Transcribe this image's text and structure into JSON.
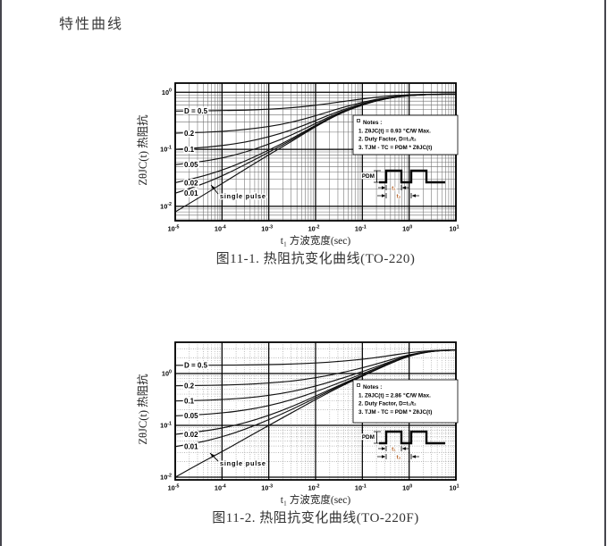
{
  "page": {
    "title": "特性曲线"
  },
  "chart_data": [
    {
      "type": "line",
      "scale": "log-log",
      "title": "图11-1. 热阻抗变化曲线(TO-220)",
      "xlabel": "t₁ 方波宽度(sec)",
      "ylabel": "ZθJC(t) 热阻抗",
      "xlim": [
        1e-05,
        10
      ],
      "ylim": [
        0.0056,
        1.45
      ],
      "x_tick_exponents": [
        -5,
        -4,
        -3,
        -2,
        -1,
        0,
        1
      ],
      "y_tick_exponents": [
        0,
        -1,
        -2
      ],
      "grid": "log decades with solid minor lines",
      "zth_max_c_per_w": 0.93,
      "x": [
        1e-05,
        3.16e-05,
        0.0001,
        0.000316,
        0.001,
        0.00316,
        0.01,
        0.0316,
        0.1,
        0.316,
        1,
        3.16,
        10
      ],
      "series": [
        {
          "name": "D = 0.5",
          "values": [
            0.469,
            0.472,
            0.478,
            0.487,
            0.505,
            0.535,
            0.591,
            0.674,
            0.767,
            0.856,
            0.907,
            0.925,
            0.93
          ]
        },
        {
          "name": "0.2",
          "values": [
            0.192,
            0.197,
            0.206,
            0.222,
            0.25,
            0.298,
            0.387,
            0.521,
            0.67,
            0.811,
            0.893,
            0.922,
            0.93
          ]
        },
        {
          "name": "0.1",
          "values": [
            0.1,
            0.106,
            0.116,
            0.133,
            0.165,
            0.219,
            0.319,
            0.47,
            0.637,
            0.796,
            0.888,
            0.922,
            0.93
          ]
        },
        {
          "name": "0.05",
          "values": [
            0.054,
            0.06,
            0.07,
            0.089,
            0.123,
            0.179,
            0.285,
            0.444,
            0.621,
            0.789,
            0.886,
            0.921,
            0.93
          ]
        },
        {
          "name": "0.02",
          "values": [
            0.026,
            0.032,
            0.043,
            0.062,
            0.097,
            0.155,
            0.265,
            0.429,
            0.611,
            0.784,
            0.884,
            0.921,
            0.93
          ]
        },
        {
          "name": "0.01",
          "values": [
            0.017,
            0.023,
            0.034,
            0.054,
            0.089,
            0.147,
            0.258,
            0.424,
            0.608,
            0.783,
            0.884,
            0.921,
            0.93
          ]
        },
        {
          "name": "single pulse",
          "values": [
            0.008,
            0.014,
            0.025,
            0.045,
            0.08,
            0.14,
            0.251,
            0.419,
            0.605,
            0.781,
            0.884,
            0.921,
            0.93
          ]
        }
      ],
      "notes": [
        "Notes :",
        "1. ZθJC(t) = 0.93 ℃/W Max.",
        "2. Duty Factor, D=t₁/t₂",
        "3. TJM - TC = PDM * ZθJC(t)"
      ],
      "single_pulse_label": "single pulse",
      "inset_labels": {
        "power": "PDM",
        "t1": "t₁",
        "t2": "t₂"
      }
    },
    {
      "type": "line",
      "scale": "log-log",
      "title": "图11-2. 热阻抗变化曲线(TO-220F)",
      "xlabel": "t₁ 方波宽度(sec)",
      "ylabel": "ZθJC(t) 热阻抗",
      "xlim": [
        1e-05,
        10
      ],
      "ylim": [
        0.0089,
        4.0
      ],
      "x_tick_exponents": [
        -5,
        -4,
        -3,
        -2,
        -1,
        0,
        1
      ],
      "y_tick_exponents": [
        0,
        -1,
        -2
      ],
      "grid": "log decades with dotted minor lines",
      "zth_max_c_per_w": 2.86,
      "x": [
        1e-05,
        3.16e-05,
        0.0001,
        0.000316,
        0.001,
        0.00316,
        0.01,
        0.0316,
        0.1,
        0.316,
        1,
        3.16,
        10
      ],
      "series": [
        {
          "name": "D = 0.5",
          "values": [
            1.435,
            1.439,
            1.446,
            1.458,
            1.48,
            1.519,
            1.587,
            1.702,
            1.873,
            2.145,
            2.531,
            2.789,
            2.846
          ]
        },
        {
          "name": "0.2",
          "values": [
            0.58,
            0.586,
            0.597,
            0.617,
            0.652,
            0.714,
            0.824,
            1.007,
            1.281,
            1.716,
            2.334,
            2.746,
            2.837
          ]
        },
        {
          "name": "0.1",
          "values": [
            0.295,
            0.302,
            0.314,
            0.336,
            0.376,
            0.446,
            0.569,
            0.775,
            1.084,
            1.573,
            2.268,
            2.731,
            2.834
          ]
        },
        {
          "name": "0.05",
          "values": [
            0.153,
            0.16,
            0.173,
            0.196,
            0.238,
            0.312,
            0.442,
            0.659,
            0.985,
            1.501,
            2.235,
            2.724,
            2.833
          ]
        },
        {
          "name": "0.02",
          "values": [
            0.067,
            0.075,
            0.088,
            0.112,
            0.155,
            0.231,
            0.366,
            0.59,
            0.926,
            1.459,
            2.215,
            2.72,
            2.832
          ]
        },
        {
          "name": "0.01",
          "values": [
            0.039,
            0.046,
            0.06,
            0.084,
            0.128,
            0.204,
            0.34,
            0.567,
            0.906,
            1.444,
            2.209,
            2.718,
            2.832
          ]
        },
        {
          "name": "single pulse",
          "values": [
            0.01,
            0.018,
            0.031,
            0.056,
            0.1,
            0.177,
            0.315,
            0.543,
            0.887,
            1.43,
            2.202,
            2.717,
            2.831
          ]
        }
      ],
      "notes": [
        "Notes :",
        "1. ZθJC(t) = 2.86 ℃/W Max.",
        "2. Duty Factor, D=t₁/t₂",
        "3. TJM - TC = PDM * ZθJC(t)"
      ],
      "single_pulse_label": "single pulse",
      "inset_labels": {
        "power": "PDM",
        "t1": "t₁",
        "t2": "t₂"
      }
    }
  ],
  "colors": {
    "curve": "#121212",
    "grid_minor": "#6e6e6e",
    "grid_major": "#000000",
    "inset_time_label": "#b35c1e",
    "page_edge": "#45454d"
  }
}
